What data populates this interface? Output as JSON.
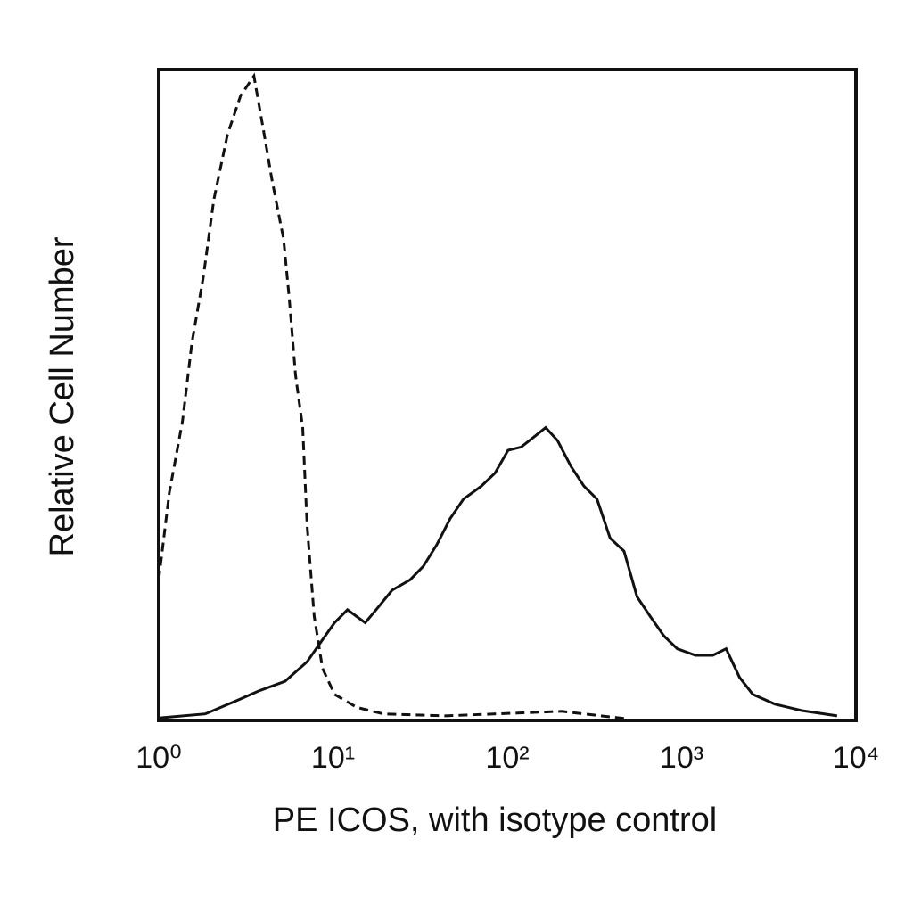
{
  "chart_data": {
    "type": "line",
    "xlabel": "PE ICOS, with isotype control",
    "ylabel": "Relative Cell Number",
    "xscale": "log",
    "xlim": [
      1,
      10000
    ],
    "xticks": [
      {
        "value": 1,
        "label": "10⁰"
      },
      {
        "value": 10,
        "label": "10¹"
      },
      {
        "value": 100,
        "label": "10²"
      },
      {
        "value": 1000,
        "label": "10³"
      },
      {
        "value": 10000,
        "label": "10⁴"
      }
    ],
    "ylim": [
      0,
      100
    ],
    "series": [
      {
        "color": "#111111",
        "style": "dashed",
        "x": [
          1,
          1.15,
          1.37,
          1.55,
          1.8,
          2.07,
          2.48,
          2.95,
          3.52,
          3.97,
          4.47,
          5.2,
          5.6,
          6.1,
          6.7,
          7.1,
          7.8,
          8.7,
          10.2,
          13.7,
          19.5,
          44,
          205,
          467
        ],
        "values": [
          21.6,
          35,
          46,
          58,
          68,
          80,
          90,
          96,
          99,
          91,
          83,
          74,
          65,
          53,
          45,
          30,
          16,
          8,
          4,
          2,
          1,
          0.7,
          1.4,
          0.3
        ]
      },
      {
        "color": "#111111",
        "style": "solid",
        "x": [
          1.02,
          1.85,
          2.78,
          3.73,
          5.3,
          7.1,
          8.5,
          10.2,
          12.1,
          15.3,
          18.3,
          21.8,
          27.7,
          33,
          39.4,
          47,
          56,
          71,
          85,
          101,
          120,
          143,
          166,
          194,
          232,
          275,
          327,
          389,
          467,
          555,
          660,
          790,
          945,
          1200,
          1510,
          1800,
          2150,
          2560,
          3430,
          4900,
          7800
        ],
        "values": [
          0.4,
          1,
          3,
          4.5,
          6,
          9,
          12,
          15,
          17,
          15,
          17.5,
          20,
          21.6,
          23.7,
          27,
          31,
          34,
          36,
          38,
          41.5,
          42,
          43.6,
          45,
          43,
          39,
          36,
          34,
          28,
          26,
          19,
          16,
          13,
          11,
          10,
          10,
          11,
          6.6,
          4,
          2.5,
          1.5,
          0.7
        ]
      }
    ]
  }
}
